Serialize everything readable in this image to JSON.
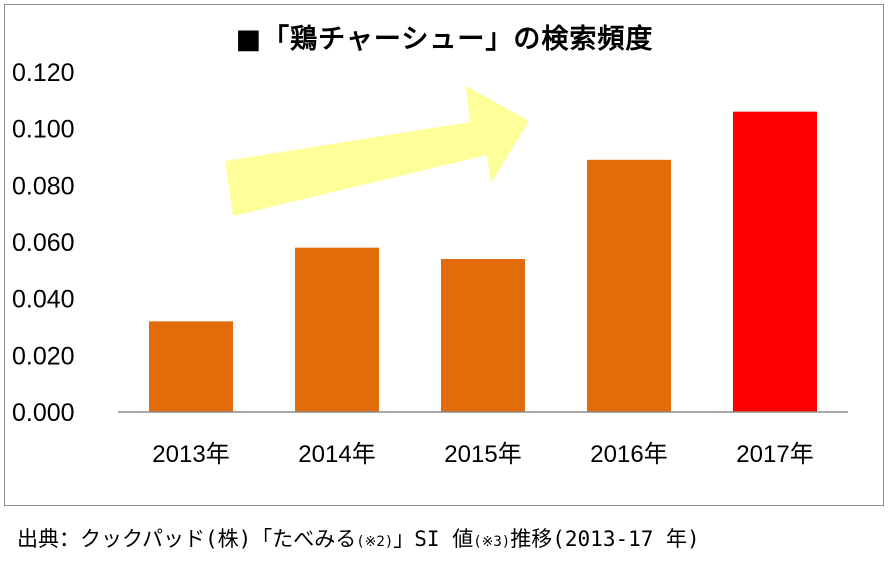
{
  "chart_data": {
    "type": "bar",
    "title": "■「鶏チャーシュー」の検索頻度",
    "categories": [
      "2013年",
      "2014年",
      "2015年",
      "2016年",
      "2017年"
    ],
    "values": [
      0.032,
      0.058,
      0.054,
      0.089,
      0.106
    ],
    "colors": [
      "#E26B0A",
      "#E26B0A",
      "#E26B0A",
      "#E26B0A",
      "#FF0000"
    ],
    "ylim": [
      0,
      0.12
    ],
    "yticks": [
      "0.000",
      "0.020",
      "0.040",
      "0.060",
      "0.080",
      "0.100",
      "0.120"
    ],
    "xlabel": "",
    "ylabel": "",
    "grid": false,
    "annotation": {
      "type": "arrow",
      "color": "#FFFF99",
      "direction": "upward-right"
    }
  },
  "caption": {
    "main": "出典：クックパッド(株)「たべみる",
    "note1": "(※2)",
    "middle": "」SI 値",
    "note2": "(※3)",
    "tail": "推移(2013-17 年)"
  }
}
